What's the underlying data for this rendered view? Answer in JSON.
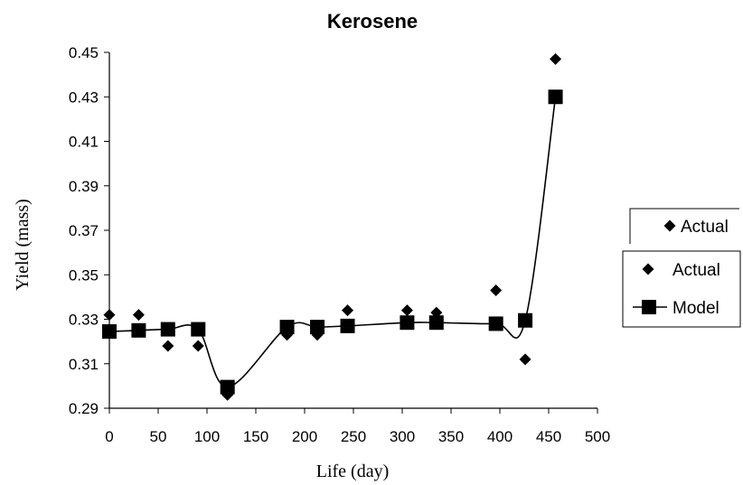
{
  "chart_data": {
    "type": "scatter",
    "title": "Kerosene",
    "xlabel": "Life (day)",
    "ylabel": "Yield (mass)",
    "xlim": [
      0,
      500
    ],
    "ylim": [
      0.29,
      0.45
    ],
    "x_ticks": [
      "0",
      "50",
      "100",
      "150",
      "200",
      "250",
      "300",
      "350",
      "400",
      "450",
      "500"
    ],
    "y_ticks": [
      "0.29",
      "0.31",
      "0.33",
      "0.35",
      "0.37",
      "0.39",
      "0.41",
      "0.43",
      "0.45"
    ],
    "grid": false,
    "legend_position": "right",
    "legend_extra_label": "Actual",
    "series": [
      {
        "name": "Actual",
        "marker": "diamond",
        "x": [
          0,
          30,
          60,
          91,
          121,
          182,
          213,
          244,
          305,
          335,
          396,
          426,
          457
        ],
        "y": [
          0.332,
          0.332,
          0.318,
          0.318,
          0.296,
          0.323,
          0.323,
          0.334,
          0.334,
          0.333,
          0.343,
          0.312,
          0.447
        ]
      },
      {
        "name": "Model",
        "marker": "square",
        "line": "smooth",
        "x": [
          0,
          30,
          60,
          91,
          121,
          182,
          213,
          244,
          305,
          335,
          396,
          426,
          457
        ],
        "y": [
          0.3245,
          0.325,
          0.3255,
          0.3255,
          0.2995,
          0.3265,
          0.3265,
          0.327,
          0.3285,
          0.3285,
          0.328,
          0.3295,
          0.43
        ]
      }
    ]
  }
}
